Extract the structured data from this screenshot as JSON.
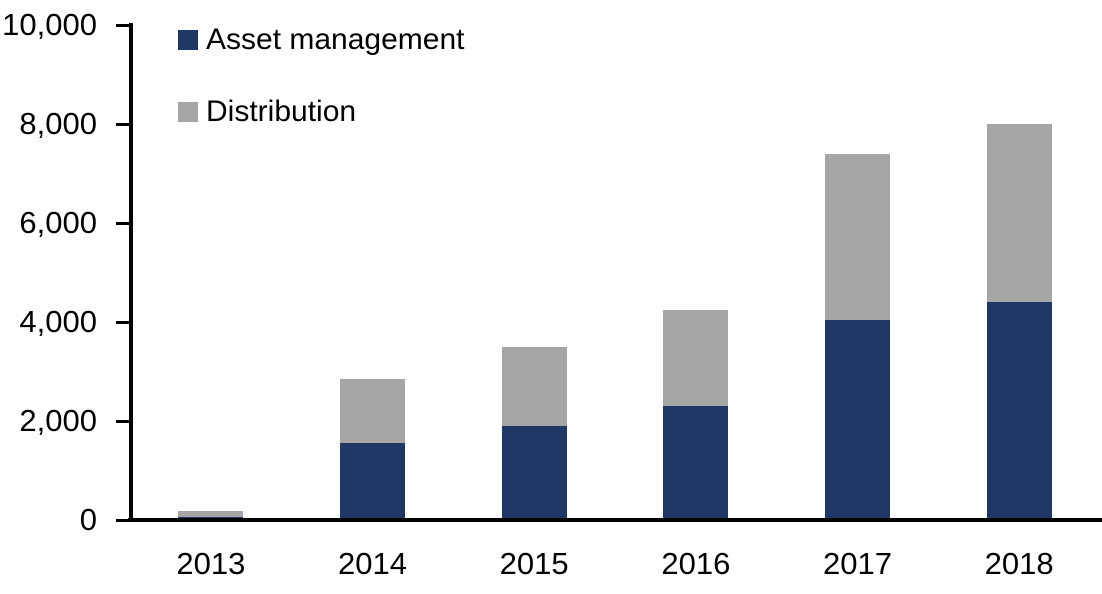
{
  "chart_data": {
    "type": "bar",
    "stacked": true,
    "title": "",
    "xlabel": "",
    "ylabel": "",
    "categories": [
      "2013",
      "2014",
      "2015",
      "2016",
      "2017",
      "2018"
    ],
    "series": [
      {
        "name": "Asset management",
        "color": "#1F3864",
        "values": [
          70,
          1550,
          1900,
          2300,
          4050,
          4400
        ]
      },
      {
        "name": "Distribution",
        "color": "#A6A6A6",
        "values": [
          110,
          1300,
          1600,
          1950,
          3350,
          3600
        ]
      }
    ],
    "totals": [
      180,
      2850,
      3500,
      4250,
      7400,
      8000
    ],
    "ylim": [
      0,
      10000
    ],
    "yticks": [
      0,
      2000,
      4000,
      6000,
      8000,
      10000
    ],
    "ytick_labels": [
      "0",
      "2,000",
      "4,000",
      "6,000",
      "8,000",
      "10,000"
    ],
    "grid": false,
    "legend_position": "top-left inside plot area"
  },
  "colors": {
    "axis": "#000000",
    "text": "#000000",
    "background": "#FFFFFF",
    "series_asset_management": "#1F3864",
    "series_distribution": "#A6A6A6"
  }
}
